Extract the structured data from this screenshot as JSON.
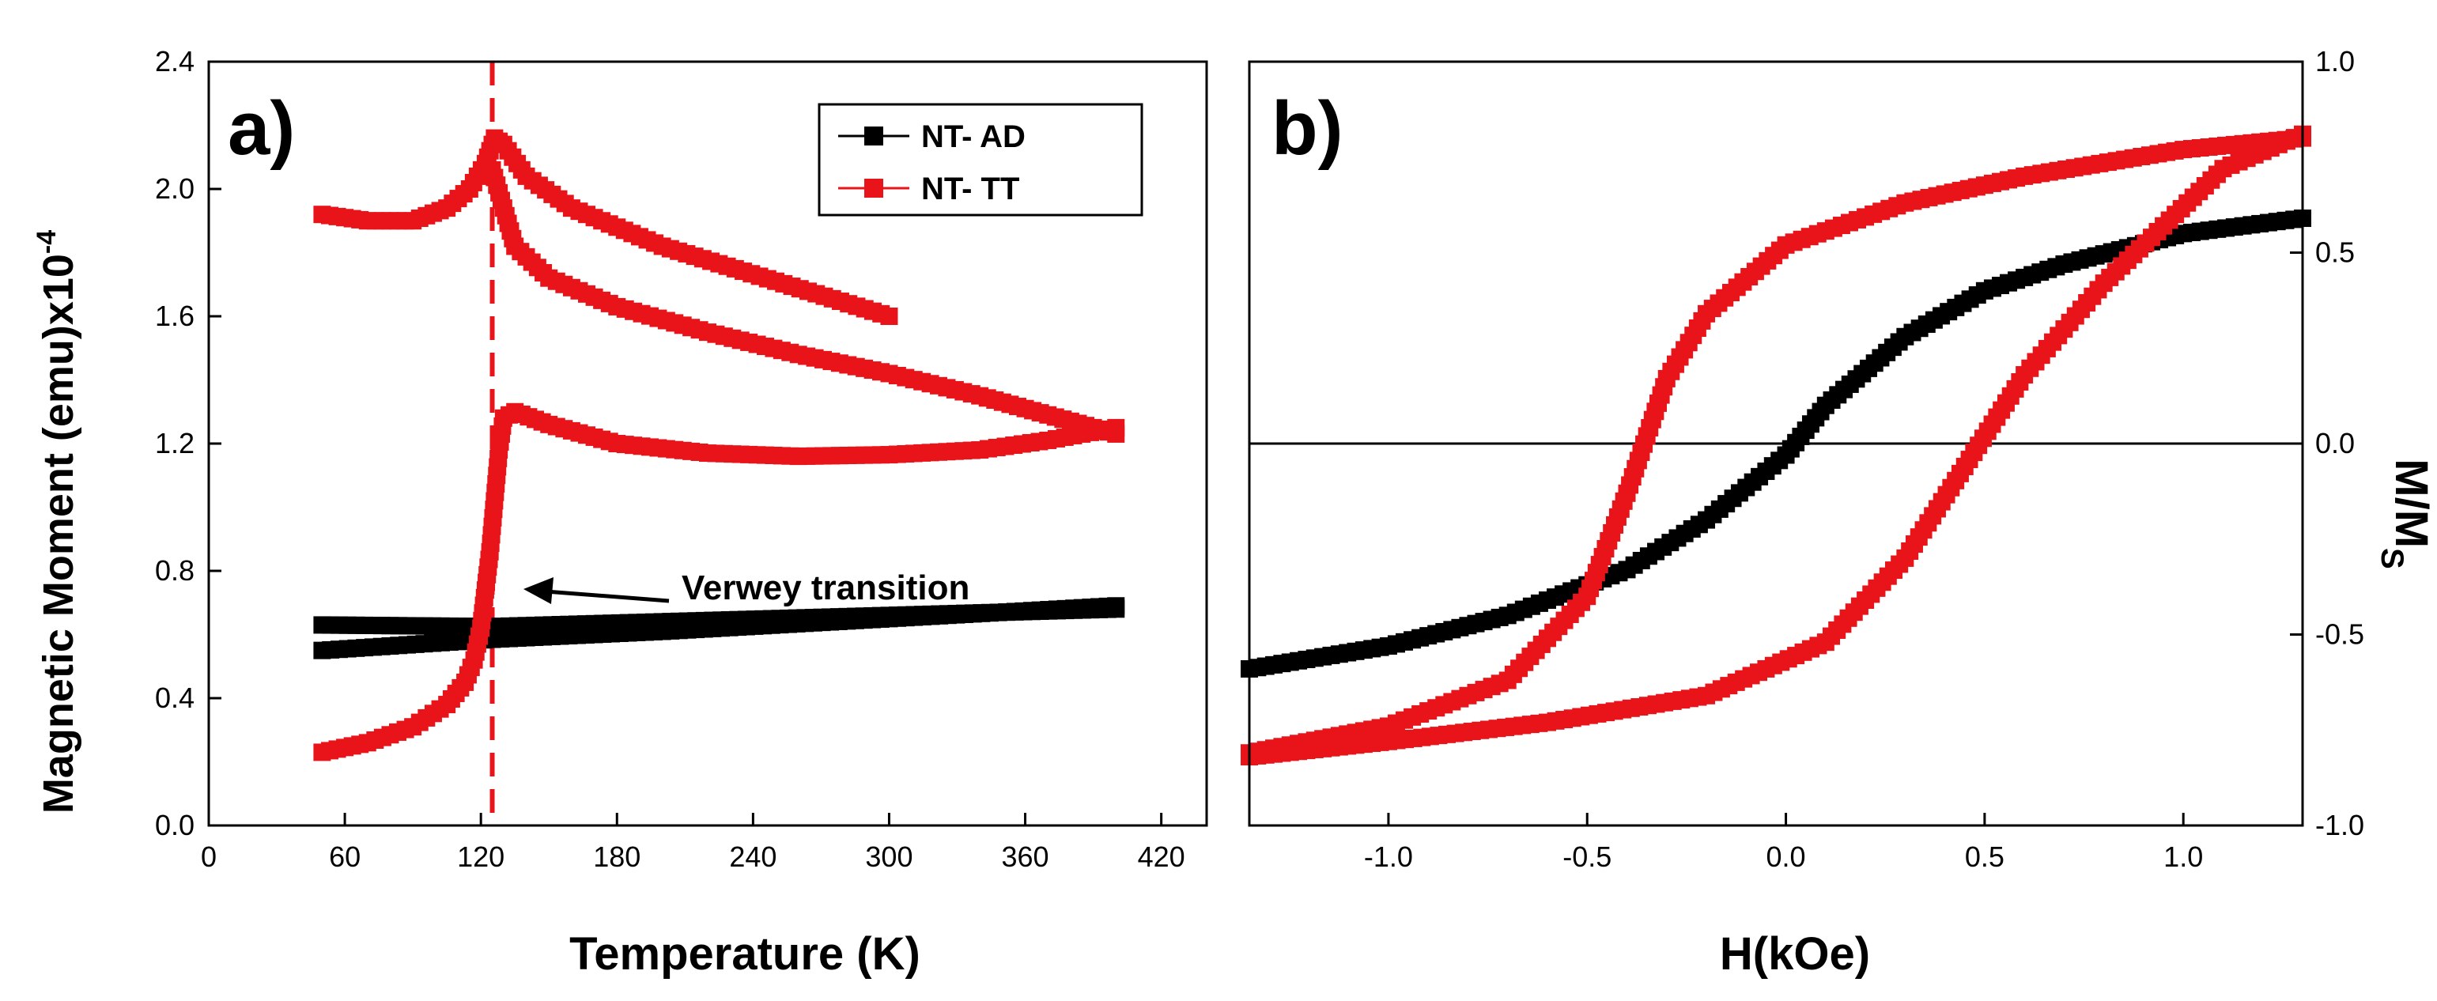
{
  "chart_data": [
    {
      "panel": "a)",
      "type": "scatter",
      "xlabel": "Temperature (K)",
      "ylabel": "Magnetic Moment (emu)x10",
      "ylabel_exponent": "-4",
      "xlim": [
        0,
        440
      ],
      "ylim": [
        0,
        2.4
      ],
      "xticks": [
        "0",
        "60",
        "120",
        "180",
        "240",
        "300",
        "360",
        "420"
      ],
      "yticks": [
        "0.0",
        "0.4",
        "0.8",
        "1.2",
        "1.6",
        "2.0",
        "2.4"
      ],
      "legend": {
        "position": "top-right",
        "entries": [
          "NT- AD",
          "NT- TT"
        ]
      },
      "annotation": {
        "text": "Verwey transition",
        "x": 125,
        "y": 0.87
      },
      "vline": {
        "x": 125,
        "style": "dashed",
        "color": "#e8141a"
      },
      "series": [
        {
          "name": "NT- AD",
          "color": "#000000",
          "marker": "square",
          "curves": [
            [
              [
                50,
                0.63
              ],
              [
                125,
                0.625
              ],
              [
                200,
                0.64
              ],
              [
                300,
                0.66
              ],
              [
                400,
                0.68
              ]
            ],
            [
              [
                50,
                0.55
              ],
              [
                125,
                0.585
              ],
              [
                200,
                0.61
              ],
              [
                300,
                0.65
              ],
              [
                400,
                0.69
              ]
            ]
          ]
        },
        {
          "name": "NT- TT",
          "color": "#e8141a",
          "marker": "square",
          "curves": [
            [
              [
                50,
                0.23
              ],
              [
                70,
                0.26
              ],
              [
                90,
                0.31
              ],
              [
                105,
                0.38
              ],
              [
                113,
                0.45
              ],
              [
                117,
                0.52
              ],
              [
                120,
                0.62
              ],
              [
                122,
                0.74
              ],
              [
                124,
                0.86
              ],
              [
                126,
                1.02
              ],
              [
                128,
                1.18
              ],
              [
                130,
                1.28
              ],
              [
                135,
                1.3
              ],
              [
                150,
                1.26
              ],
              [
                180,
                1.2
              ],
              [
                220,
                1.17
              ],
              [
                260,
                1.16
              ],
              [
                300,
                1.165
              ],
              [
                340,
                1.18
              ],
              [
                370,
                1.21
              ],
              [
                400,
                1.25
              ]
            ],
            [
              [
                50,
                1.92
              ],
              [
                70,
                1.9
              ],
              [
                90,
                1.9
              ],
              [
                105,
                1.94
              ],
              [
                115,
                2.0
              ],
              [
                122,
                2.08
              ],
              [
                126,
                2.16
              ],
              [
                130,
                2.14
              ],
              [
                140,
                2.04
              ],
              [
                160,
                1.94
              ],
              [
                200,
                1.82
              ],
              [
                250,
                1.71
              ],
              [
                300,
                1.6
              ]
            ],
            [
              [
                125,
                2.06
              ],
              [
                135,
                1.82
              ],
              [
                150,
                1.72
              ],
              [
                180,
                1.63
              ],
              [
                220,
                1.55
              ],
              [
                260,
                1.48
              ],
              [
                300,
                1.42
              ],
              [
                340,
                1.35
              ],
              [
                370,
                1.29
              ],
              [
                400,
                1.23
              ]
            ]
          ]
        }
      ]
    },
    {
      "panel": "b)",
      "type": "scatter",
      "xlabel": "H(kOe)",
      "ylabel": "M/M",
      "ylabel_subscript": "S",
      "xlim": [
        -1.35,
        1.3
      ],
      "ylim": [
        -1.0,
        1.0
      ],
      "xticks": [
        "-1.0",
        "-0.5",
        "0.0",
        "0.5",
        "1.0"
      ],
      "yticks": [
        "-1.0",
        "-0.5",
        "0.0",
        "0.5",
        "1.0"
      ],
      "zero_line": true,
      "series": [
        {
          "name": "NT- AD",
          "color": "#000000",
          "marker": "square",
          "curves": [
            [
              [
                -1.35,
                -0.59
              ],
              [
                -1.0,
                -0.53
              ],
              [
                -0.7,
                -0.45
              ],
              [
                -0.4,
                -0.33
              ],
              [
                -0.2,
                -0.2
              ],
              [
                0.0,
                -0.03
              ],
              [
                0.1,
                0.1
              ],
              [
                0.3,
                0.28
              ],
              [
                0.5,
                0.4
              ],
              [
                0.7,
                0.47
              ],
              [
                1.0,
                0.55
              ],
              [
                1.3,
                0.59
              ]
            ]
          ]
        },
        {
          "name": "NT- TT",
          "color": "#e8141a",
          "marker": "square",
          "curves": [
            [
              [
                -1.35,
                -0.81
              ],
              [
                -1.0,
                -0.74
              ],
              [
                -0.7,
                -0.62
              ],
              [
                -0.5,
                -0.4
              ],
              [
                -0.4,
                -0.13
              ],
              [
                -0.3,
                0.17
              ],
              [
                -0.2,
                0.34
              ],
              [
                0.0,
                0.52
              ],
              [
                0.3,
                0.63
              ],
              [
                0.6,
                0.7
              ],
              [
                1.0,
                0.77
              ],
              [
                1.3,
                0.8
              ]
            ],
            [
              [
                1.3,
                0.81
              ],
              [
                1.1,
                0.72
              ],
              [
                0.8,
                0.42
              ],
              [
                0.6,
                0.18
              ],
              [
                0.45,
                -0.06
              ],
              [
                0.3,
                -0.3
              ],
              [
                0.1,
                -0.52
              ],
              [
                -0.2,
                -0.66
              ],
              [
                -0.6,
                -0.73
              ],
              [
                -1.0,
                -0.78
              ],
              [
                -1.35,
                -0.82
              ]
            ]
          ]
        }
      ]
    }
  ]
}
